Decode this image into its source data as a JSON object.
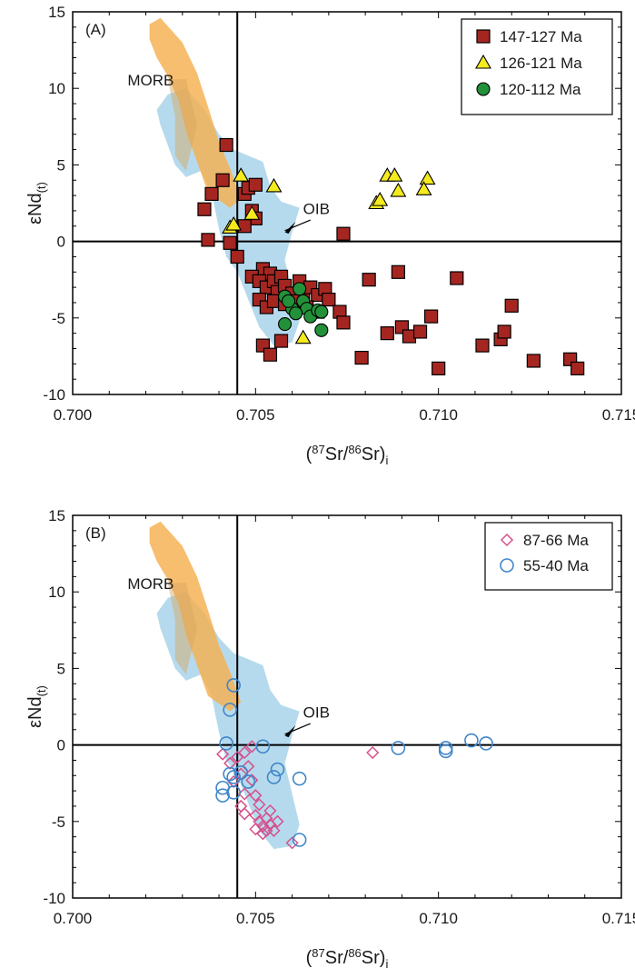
{
  "colors": {
    "morb": "#f5b04f",
    "oib": "#a9d4ea",
    "square": "#a52621",
    "triangle": "#f4ea1e",
    "circle": "#23913a",
    "diamond": "#d4518c",
    "ring": "#3f86c9"
  },
  "chart_data": [
    {
      "type": "scatter",
      "panel_label": "(A)",
      "xlabel": "(87Sr/86Sr)i",
      "ylabel": "εNd(t)",
      "xlim": [
        0.7,
        0.715
      ],
      "ylim": [
        -10,
        15
      ],
      "x_ticks": [
        "0.700",
        "0.705",
        "0.710",
        "0.715"
      ],
      "y_ticks": [
        "15",
        "10",
        "5",
        "0",
        "-5",
        "-10"
      ],
      "reference_lines": {
        "x": 0.7045,
        "y": 0
      },
      "field_labels": {
        "morb": "MORB",
        "oib": "OIB"
      },
      "legend_position": "top-right",
      "series": [
        {
          "name": "147-127 Ma",
          "marker": "square",
          "points": [
            [
              0.7042,
              6.3
            ],
            [
              0.7041,
              4.0
            ],
            [
              0.7038,
              3.1
            ],
            [
              0.7036,
              2.1
            ],
            [
              0.7037,
              0.1
            ],
            [
              0.7043,
              -0.1
            ],
            [
              0.7045,
              -1.0
            ],
            [
              0.7047,
              3.1
            ],
            [
              0.7048,
              3.5
            ],
            [
              0.705,
              3.7
            ],
            [
              0.7049,
              2.0
            ],
            [
              0.705,
              1.5
            ],
            [
              0.7047,
              1.0
            ],
            [
              0.7052,
              -1.8
            ],
            [
              0.7054,
              -2.1
            ],
            [
              0.7049,
              -2.3
            ],
            [
              0.7051,
              -2.6
            ],
            [
              0.7053,
              -3.0
            ],
            [
              0.7055,
              -2.6
            ],
            [
              0.7056,
              -3.3
            ],
            [
              0.7057,
              -2.3
            ],
            [
              0.7058,
              -2.9
            ],
            [
              0.706,
              -3.4
            ],
            [
              0.7062,
              -2.6
            ],
            [
              0.7063,
              -3.7
            ],
            [
              0.7065,
              -3.0
            ],
            [
              0.7067,
              -3.5
            ],
            [
              0.7069,
              -3.1
            ],
            [
              0.707,
              -3.8
            ],
            [
              0.7051,
              -3.8
            ],
            [
              0.7053,
              -4.3
            ],
            [
              0.7055,
              -3.9
            ],
            [
              0.7058,
              -4.1
            ],
            [
              0.7061,
              -3.9
            ],
            [
              0.7064,
              -4.3
            ],
            [
              0.7067,
              -4.6
            ],
            [
              0.7073,
              -4.6
            ],
            [
              0.7074,
              -5.3
            ],
            [
              0.7074,
              0.5
            ],
            [
              0.7081,
              -2.5
            ],
            [
              0.7089,
              -2.0
            ],
            [
              0.7105,
              -2.4
            ],
            [
              0.7057,
              -6.5
            ],
            [
              0.7052,
              -6.8
            ],
            [
              0.7054,
              -7.4
            ],
            [
              0.7079,
              -7.6
            ],
            [
              0.7086,
              -6.0
            ],
            [
              0.709,
              -5.6
            ],
            [
              0.7092,
              -6.2
            ],
            [
              0.7095,
              -5.9
            ],
            [
              0.7098,
              -4.9
            ],
            [
              0.71,
              -8.3
            ],
            [
              0.7112,
              -6.8
            ],
            [
              0.7117,
              -6.4
            ],
            [
              0.7118,
              -5.9
            ],
            [
              0.712,
              -4.2
            ],
            [
              0.7126,
              -7.8
            ],
            [
              0.7136,
              -7.7
            ],
            [
              0.7138,
              -8.3
            ]
          ]
        },
        {
          "name": "126-121 Ma",
          "marker": "triangle",
          "points": [
            [
              0.7046,
              4.3
            ],
            [
              0.7055,
              3.6
            ],
            [
              0.7043,
              0.9
            ],
            [
              0.7044,
              1.1
            ],
            [
              0.7049,
              1.8
            ],
            [
              0.7086,
              4.3
            ],
            [
              0.7088,
              4.3
            ],
            [
              0.7097,
              4.1
            ],
            [
              0.7083,
              2.5
            ],
            [
              0.7084,
              2.7
            ],
            [
              0.7089,
              3.3
            ],
            [
              0.7096,
              3.4
            ],
            [
              0.7063,
              -6.3
            ]
          ]
        },
        {
          "name": "120-112 Ma",
          "marker": "circle",
          "points": [
            [
              0.7058,
              -3.6
            ],
            [
              0.706,
              -4.4
            ],
            [
              0.7062,
              -3.1
            ],
            [
              0.7063,
              -3.9
            ],
            [
              0.7064,
              -4.4
            ],
            [
              0.7065,
              -4.9
            ],
            [
              0.7067,
              -4.5
            ],
            [
              0.7068,
              -4.6
            ],
            [
              0.7058,
              -5.4
            ],
            [
              0.7068,
              -5.8
            ],
            [
              0.7061,
              -4.7
            ],
            [
              0.7059,
              -3.9
            ]
          ]
        }
      ]
    },
    {
      "type": "scatter",
      "panel_label": "(B)",
      "xlabel": "(87Sr/86Sr)i",
      "ylabel": "εNd(t)",
      "xlim": [
        0.7,
        0.715
      ],
      "ylim": [
        -10,
        15
      ],
      "x_ticks": [
        "0.700",
        "0.705",
        "0.710",
        "0.715"
      ],
      "y_ticks": [
        "15",
        "10",
        "5",
        "0",
        "-5",
        "-10"
      ],
      "reference_lines": {
        "x": 0.7045,
        "y": 0
      },
      "field_labels": {
        "morb": "MORB",
        "oib": "OIB"
      },
      "legend_position": "top-right",
      "series": [
        {
          "name": "87-66 Ma",
          "marker": "diamond",
          "points": [
            [
              0.7041,
              -0.6
            ],
            [
              0.7043,
              -1.2
            ],
            [
              0.7045,
              -0.8
            ],
            [
              0.7047,
              -0.5
            ],
            [
              0.7049,
              -0.1
            ],
            [
              0.7046,
              -1.9
            ],
            [
              0.7048,
              -1.4
            ],
            [
              0.7049,
              -2.3
            ],
            [
              0.7044,
              -2.4
            ],
            [
              0.7047,
              -3.2
            ],
            [
              0.705,
              -3.3
            ],
            [
              0.7051,
              -3.9
            ],
            [
              0.7046,
              -4.0
            ],
            [
              0.7047,
              -4.5
            ],
            [
              0.705,
              -4.6
            ],
            [
              0.7051,
              -5.0
            ],
            [
              0.7052,
              -5.3
            ],
            [
              0.7053,
              -5.6
            ],
            [
              0.7054,
              -5.2
            ],
            [
              0.7055,
              -5.6
            ],
            [
              0.7056,
              -5.0
            ],
            [
              0.7054,
              -4.3
            ],
            [
              0.7052,
              -5.8
            ],
            [
              0.705,
              -5.5
            ],
            [
              0.706,
              -6.4
            ],
            [
              0.7082,
              -0.5
            ],
            [
              0.7053,
              -4.8
            ]
          ]
        },
        {
          "name": "55-40 Ma",
          "marker": "ring",
          "points": [
            [
              0.7044,
              3.9
            ],
            [
              0.7043,
              2.3
            ],
            [
              0.7042,
              0.1
            ],
            [
              0.7041,
              -3.3
            ],
            [
              0.7041,
              -2.8
            ],
            [
              0.7043,
              -1.9
            ],
            [
              0.7044,
              -2.1
            ],
            [
              0.7046,
              -1.8
            ],
            [
              0.7044,
              -3.1
            ],
            [
              0.7048,
              -2.4
            ],
            [
              0.7052,
              -0.1
            ],
            [
              0.7055,
              -2.1
            ],
            [
              0.7056,
              -1.6
            ],
            [
              0.7062,
              -2.2
            ],
            [
              0.7062,
              -6.2
            ],
            [
              0.7089,
              -0.2
            ],
            [
              0.7102,
              -0.2
            ],
            [
              0.7102,
              -0.4
            ],
            [
              0.7109,
              0.3
            ],
            [
              0.7113,
              0.1
            ]
          ]
        }
      ]
    }
  ]
}
